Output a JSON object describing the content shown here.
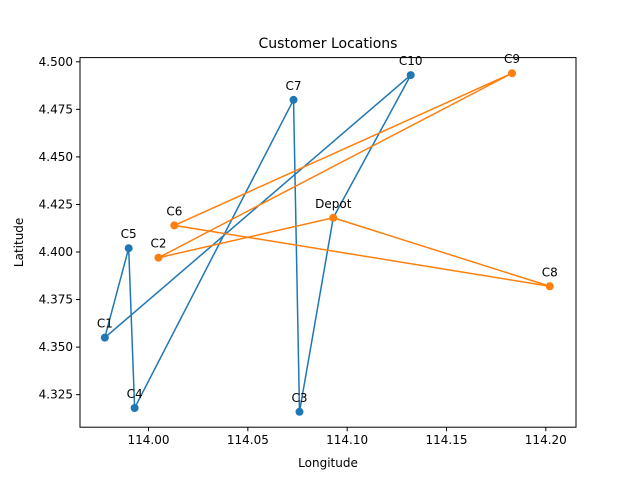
{
  "chart_data": {
    "type": "line",
    "title": "Customer Locations",
    "xlabel": "Longitude",
    "ylabel": "Latitude",
    "xlim": [
      113.9655,
      114.2152
    ],
    "ylim": [
      4.3079,
      4.5022
    ],
    "xticks": [
      114.0,
      114.05,
      114.1,
      114.15,
      114.2
    ],
    "xtick_labels": [
      "114.00",
      "114.05",
      "114.10",
      "114.15",
      "114.20"
    ],
    "yticks": [
      4.325,
      4.35,
      4.375,
      4.4,
      4.425,
      4.45,
      4.475,
      4.5
    ],
    "ytick_labels": [
      "4.325",
      "4.350",
      "4.375",
      "4.400",
      "4.425",
      "4.450",
      "4.475",
      "4.500"
    ],
    "grid": false,
    "points": [
      {
        "label": "Depot",
        "x": 114.093,
        "y": 4.418
      },
      {
        "label": "C1",
        "x": 113.978,
        "y": 4.355
      },
      {
        "label": "C2",
        "x": 114.005,
        "y": 4.397
      },
      {
        "label": "C3",
        "x": 114.076,
        "y": 4.316
      },
      {
        "label": "C4",
        "x": 113.993,
        "y": 4.318
      },
      {
        "label": "C5",
        "x": 113.99,
        "y": 4.402
      },
      {
        "label": "C6",
        "x": 114.013,
        "y": 4.414
      },
      {
        "label": "C7",
        "x": 114.073,
        "y": 4.48
      },
      {
        "label": "C8",
        "x": 114.202,
        "y": 4.382
      },
      {
        "label": "C9",
        "x": 114.183,
        "y": 4.494
      },
      {
        "label": "C10",
        "x": 114.132,
        "y": 4.493
      }
    ],
    "series": [
      {
        "color": "#1f77b4",
        "route": [
          "Depot",
          "C3",
          "C7",
          "C4",
          "C5",
          "C1",
          "C10",
          "Depot"
        ]
      },
      {
        "color": "#ff7f0e",
        "route": [
          "Depot",
          "C8",
          "C6",
          "C9",
          "C2",
          "Depot"
        ]
      }
    ]
  }
}
